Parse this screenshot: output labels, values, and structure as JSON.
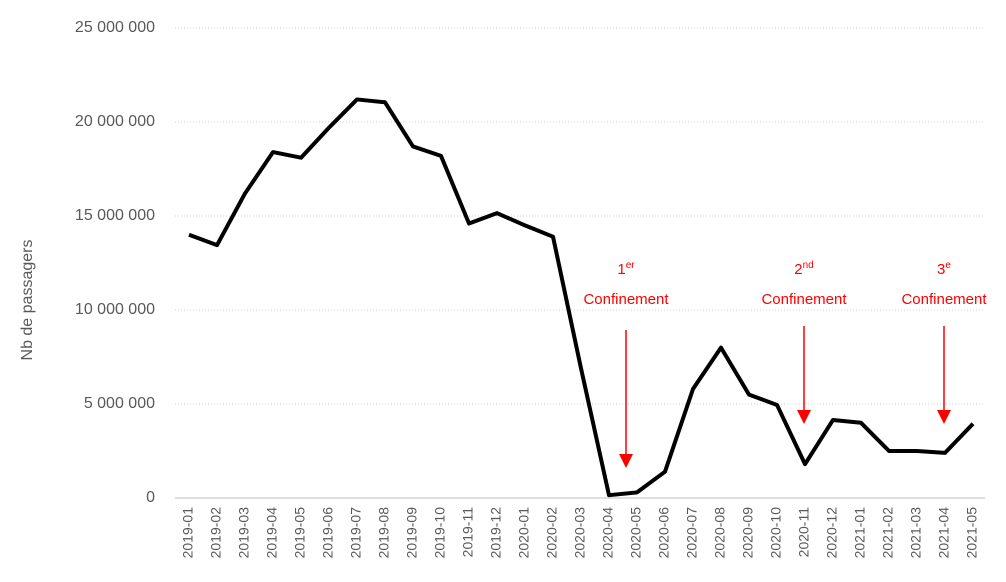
{
  "chart_data": {
    "type": "line",
    "y_label": "Nb de passagers",
    "categories": [
      "2019-01",
      "2019-02",
      "2019-03",
      "2019-04",
      "2019-05",
      "2019-06",
      "2019-07",
      "2019-08",
      "2019-09",
      "2019-10",
      "2019-11",
      "2019-12",
      "2020-01",
      "2020-02",
      "2020-03",
      "2020-04",
      "2020-05",
      "2020-06",
      "2020-07",
      "2020-08",
      "2020-09",
      "2020-10",
      "2020-11",
      "2020-12",
      "2021-01",
      "2021-02",
      "2021-03",
      "2021-04",
      "2021-05"
    ],
    "series": [
      {
        "color": "#000000",
        "values": [
          14000000,
          13450000,
          16200000,
          18400000,
          18100000,
          19700000,
          21200000,
          21050000,
          18700000,
          18200000,
          14600000,
          15150000,
          14500000,
          13900000,
          6900000,
          150000,
          300000,
          1400000,
          5800000,
          8000000,
          5500000,
          4950000,
          1800000,
          4150000,
          4000000,
          2500000,
          2500000,
          2400000,
          3950000
        ]
      }
    ],
    "ylim": [
      0,
      25000000
    ],
    "yticks": [
      0,
      {
        "value": 5000000,
        "label": "5 000 000"
      },
      {
        "value": 10000000,
        "label": "10 000 000"
      },
      {
        "value": 15000000,
        "label": "15 000 000"
      },
      {
        "value": 20000000,
        "label": "20 000 000"
      },
      {
        "value": 25000000,
        "label": "25 000 000"
      }
    ],
    "grid": true,
    "annotations": [
      {
        "number": "1",
        "sup": "er",
        "text": "Confinement",
        "color": "#ff0000"
      },
      {
        "number": "2",
        "sup": "nd",
        "text": "Confinement",
        "color": "#ff0000"
      },
      {
        "number": "3",
        "sup": "e",
        "text": "Confinement",
        "color": "#ff0000"
      }
    ]
  }
}
